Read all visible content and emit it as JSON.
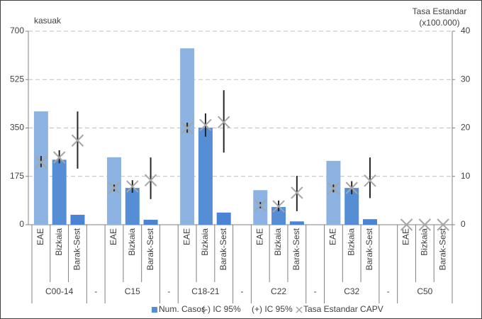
{
  "chart_data": {
    "type": "bar",
    "y_label": "kasuak",
    "y2_label": "Tasa Estandar (x100.000)",
    "groups": [
      "C00-14",
      "-",
      "C15",
      "-",
      "C18-21",
      "-",
      "C22",
      "-",
      "C32",
      "-",
      "C50"
    ],
    "subcategories": [
      "EAE",
      "Bizkaia",
      "Barak-Sest"
    ],
    "series": [
      {
        "name": "Num. Casos",
        "type": "bar",
        "color": "#558ed5",
        "subcategory_colors": [
          "#8db3e2",
          "#558ed5",
          "#4a84d3"
        ],
        "values": [
          410,
          235,
          36,
          244,
          133,
          18,
          638,
          351,
          44,
          125,
          64,
          12,
          231,
          133,
          20,
          0,
          0,
          0
        ]
      },
      {
        "name": "(-) IC 95%",
        "type": "error_low",
        "axis": "y2",
        "values": [
          11.9,
          12.7,
          11.6,
          6.9,
          6.6,
          5.3,
          19.0,
          18.2,
          14.9,
          3.4,
          2.8,
          2.8,
          6.7,
          6.3,
          5.5,
          0,
          0,
          0
        ]
      },
      {
        "name": "(+) IC 95%",
        "type": "error_high",
        "axis": "y2",
        "values": [
          14.2,
          15.4,
          23.4,
          8.3,
          9.2,
          13.9,
          21.1,
          23.0,
          27.8,
          4.7,
          5.0,
          10.1,
          8.3,
          9.0,
          13.9,
          0,
          0,
          0
        ]
      },
      {
        "name": "Tasa Estandar CAPV",
        "type": "scatter",
        "axis": "y2",
        "color": "#a6a6a6",
        "values": [
          12.9,
          13.9,
          17.4,
          7.6,
          7.9,
          9.2,
          20.0,
          20.6,
          21.2,
          4.0,
          3.8,
          6.6,
          7.5,
          7.6,
          9.1,
          0,
          0,
          0
        ]
      }
    ],
    "ylim": [
      0,
      700
    ],
    "yticks": [
      0,
      175,
      350,
      525,
      700
    ],
    "y2lim": [
      0,
      40
    ],
    "y2ticks": [
      0,
      10,
      20,
      30,
      40
    ],
    "grid": true
  }
}
